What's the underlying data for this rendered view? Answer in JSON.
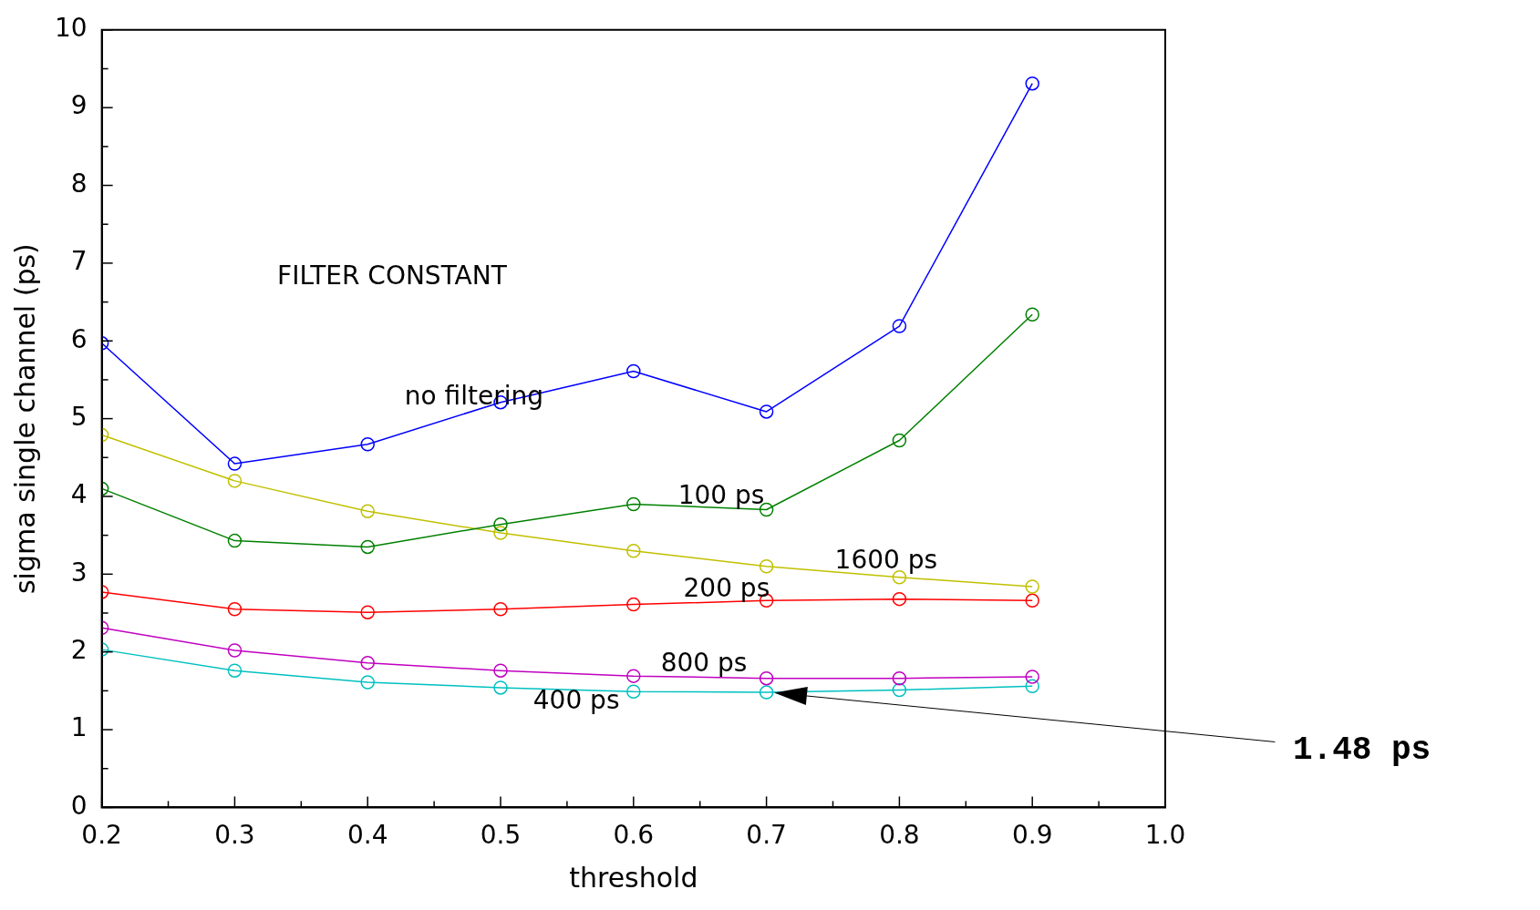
{
  "chart_data": {
    "type": "line",
    "xlabel": "threshold",
    "ylabel": "sigma single channel (ps)",
    "x": [
      0.2,
      0.3,
      0.4,
      0.5,
      0.6,
      0.7,
      0.8,
      0.9
    ],
    "series": [
      {
        "name": "no filtering",
        "color": "#0000ff",
        "values": [
          5.97,
          4.42,
          4.67,
          5.21,
          5.61,
          5.09,
          6.19,
          9.31
        ]
      },
      {
        "name": "100 ps",
        "color": "#008000",
        "values": [
          4.1,
          3.43,
          3.35,
          3.64,
          3.9,
          3.83,
          4.72,
          6.34
        ]
      },
      {
        "name": "1600 ps",
        "color": "#c0c000",
        "values": [
          4.79,
          4.2,
          3.81,
          3.53,
          3.3,
          3.1,
          2.96,
          2.84
        ]
      },
      {
        "name": "200 ps",
        "color": "#ff0000",
        "values": [
          2.77,
          2.55,
          2.51,
          2.55,
          2.61,
          2.66,
          2.68,
          2.66
        ]
      },
      {
        "name": "800 ps",
        "color": "#c000c0",
        "values": [
          2.31,
          2.02,
          1.86,
          1.76,
          1.69,
          1.66,
          1.66,
          1.68
        ]
      },
      {
        "name": "400 ps",
        "color": "#00c0c0",
        "values": [
          2.03,
          1.76,
          1.61,
          1.54,
          1.49,
          1.48,
          1.51,
          1.56
        ]
      }
    ],
    "xlim": [
      0.2,
      1.0
    ],
    "xticks": [
      0.2,
      {
        "value": 0.25,
        "label": null
      },
      0.3,
      {
        "value": 0.35,
        "label": null
      },
      0.4,
      {
        "value": 0.45,
        "label": null
      },
      0.5,
      {
        "value": 0.55,
        "label": null
      },
      0.6,
      {
        "value": 0.65,
        "label": null
      },
      0.7,
      {
        "value": 0.75,
        "label": null
      },
      0.8,
      {
        "value": 0.85,
        "label": null
      },
      0.9,
      {
        "value": 0.95,
        "label": null
      },
      {
        "value": 1,
        "label": "1.0"
      }
    ],
    "ylim": [
      0,
      10
    ],
    "yticks": [
      0,
      {
        "value": 0.5,
        "label": null
      },
      1,
      {
        "value": 1.5,
        "label": null
      },
      2,
      {
        "value": 2.5,
        "label": null
      },
      3,
      {
        "value": 3.5,
        "label": null
      },
      4,
      {
        "value": 4.5,
        "label": null
      },
      5,
      {
        "value": 5.5,
        "label": null
      },
      6,
      {
        "value": 6.5,
        "label": null
      },
      7,
      {
        "value": 7.5,
        "label": null
      },
      8,
      {
        "value": 8.5,
        "label": null
      },
      9,
      {
        "value": 9.5,
        "label": null
      },
      10
    ],
    "grid": false,
    "legend": false,
    "marker": "circle",
    "line_style": "solid",
    "annotations": [
      "FILTER CONSTANT",
      "1.48 ps"
    ]
  }
}
